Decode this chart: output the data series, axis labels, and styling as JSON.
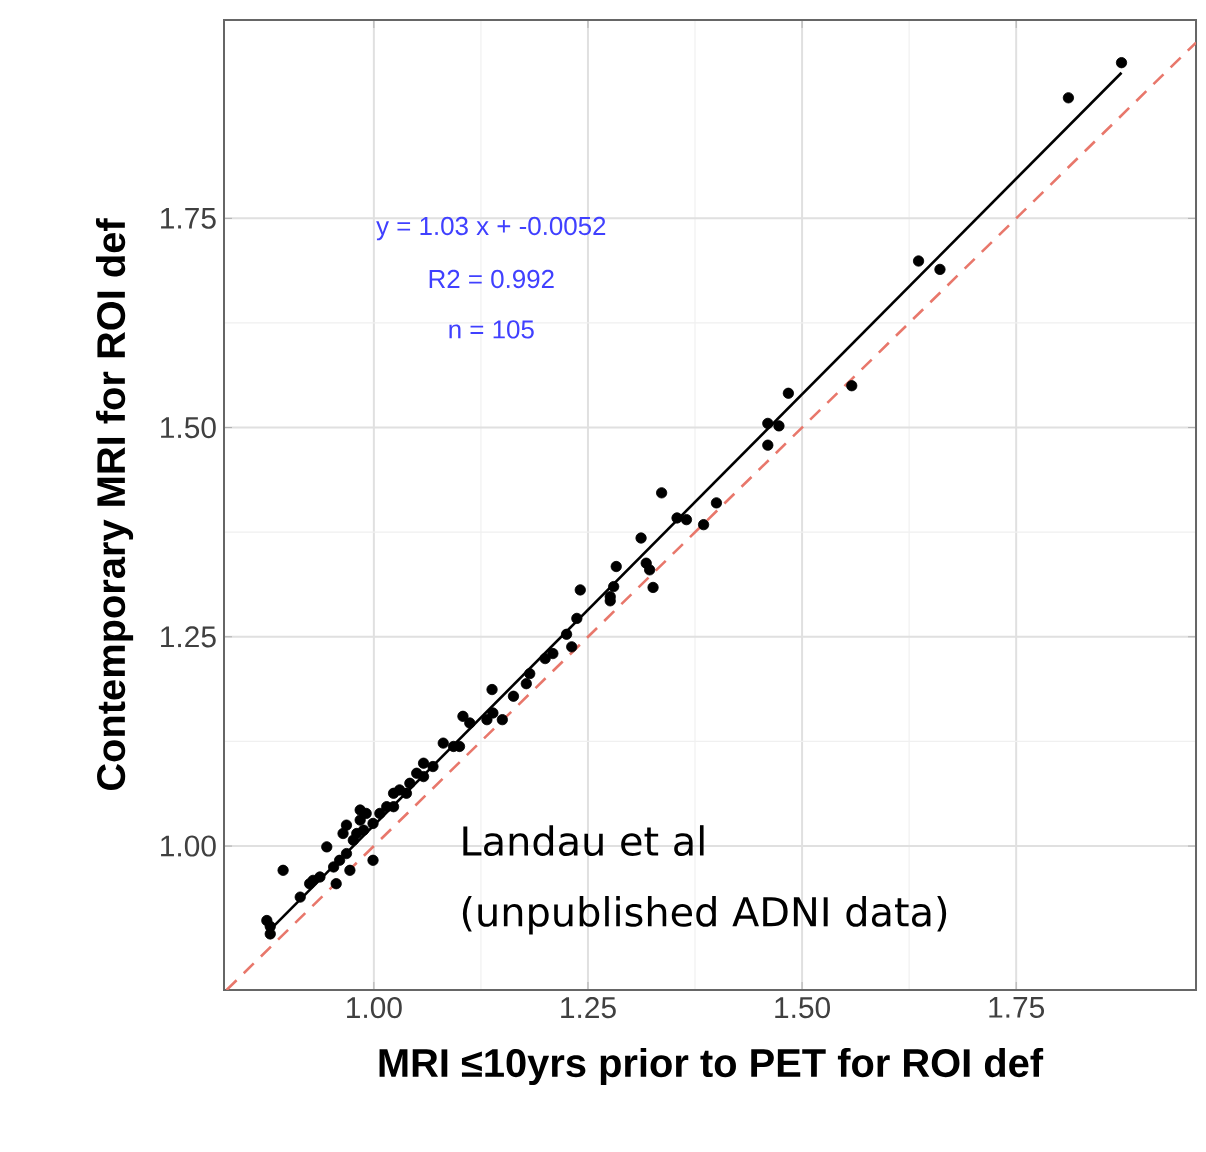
{
  "chart_data": {
    "type": "scatter",
    "xlabel": "MRI ≤10yrs prior to PET for ROI def",
    "ylabel": "Contemporary MRI for ROI def",
    "annotations": [
      "y = 1.03 x + -0.0052",
      "R2 = 0.992",
      "n = 105",
      "Landau et al",
      "(unpublished ADNI data)"
    ],
    "xlim": [
      0.825,
      1.96
    ],
    "ylim": [
      0.828,
      1.987
    ],
    "xticks": [
      {
        "value": 1.0,
        "label": "1.00"
      },
      {
        "value": 1.25,
        "label": "1.25"
      },
      {
        "value": 1.5,
        "label": "1.50"
      },
      {
        "value": 1.75,
        "label": "1.75"
      }
    ],
    "yticks": [
      {
        "value": 1.0,
        "label": "1.00"
      },
      {
        "value": 1.25,
        "label": "1.25"
      },
      {
        "value": 1.5,
        "label": "1.50"
      },
      {
        "value": 1.75,
        "label": "1.75"
      }
    ],
    "grid": true,
    "series": [
      {
        "marker": "circle",
        "color": "#000000",
        "x": [
          1.873,
          1.811,
          1.636,
          1.661,
          1.558,
          1.484,
          1.46,
          1.473,
          1.46,
          1.336,
          1.4,
          1.354,
          1.365,
          1.385,
          1.312,
          1.318,
          1.322,
          1.326,
          1.283,
          1.28,
          1.276,
          1.276,
          1.241,
          1.237,
          1.225,
          1.231,
          1.209,
          1.2,
          1.182,
          1.178,
          1.163,
          1.15,
          1.138,
          1.139,
          1.132,
          1.104,
          1.112,
          1.1,
          1.093,
          1.081,
          1.069,
          1.058,
          1.058,
          1.05,
          1.042,
          1.038,
          1.03,
          1.023,
          1.023,
          1.015,
          1.007,
          0.999,
          0.991,
          0.988,
          0.984,
          0.98,
          0.976,
          0.968,
          0.964,
          0.968,
          0.96,
          0.972,
          0.999,
          0.945,
          0.953,
          0.956,
          0.937,
          0.929,
          0.925,
          0.914,
          0.894,
          0.875,
          0.879,
          0.879,
          0.984
        ],
        "values": [
          1.936,
          1.894,
          1.699,
          1.689,
          1.55,
          1.541,
          1.505,
          1.502,
          1.479,
          1.422,
          1.41,
          1.392,
          1.39,
          1.384,
          1.368,
          1.338,
          1.33,
          1.309,
          1.334,
          1.31,
          1.298,
          1.293,
          1.306,
          1.272,
          1.253,
          1.238,
          1.23,
          1.224,
          1.206,
          1.194,
          1.179,
          1.151,
          1.187,
          1.159,
          1.151,
          1.155,
          1.147,
          1.119,
          1.119,
          1.123,
          1.095,
          1.099,
          1.083,
          1.087,
          1.075,
          1.063,
          1.067,
          1.063,
          1.047,
          1.047,
          1.039,
          1.027,
          1.039,
          1.019,
          1.031,
          1.015,
          1.007,
          1.025,
          1.015,
          0.991,
          0.983,
          0.971,
          0.983,
          0.999,
          0.975,
          0.955,
          0.963,
          0.959,
          0.955,
          0.939,
          0.971,
          0.911,
          0.904,
          0.895,
          1.043
        ]
      },
      {
        "type": "line",
        "marker": "none",
        "color": "#000000",
        "line_style": "solid",
        "x": [
          0.875,
          1.873
        ],
        "values": [
          0.896,
          1.924
        ]
      },
      {
        "type": "line",
        "marker": "none",
        "color": "#e8776b",
        "line_style": "dashed",
        "x": [
          0.828,
          1.96
        ],
        "values": [
          0.828,
          1.96
        ]
      }
    ]
  }
}
